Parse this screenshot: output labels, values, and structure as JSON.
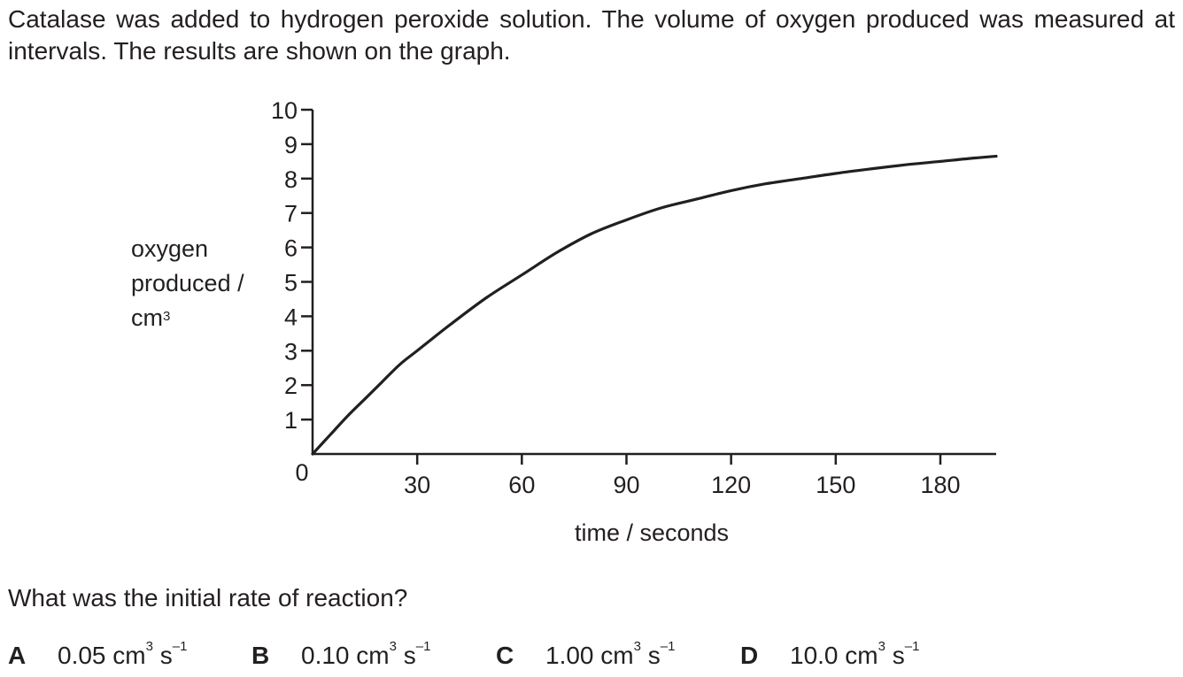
{
  "intro_text": "Catalase was added to hydrogen peroxide solution. The volume of oxygen produced was measured at intervals. The results are shown on the graph.",
  "question": "What was the initial rate of reaction?",
  "options": [
    {
      "key": "A",
      "value": "0.05",
      "unit": "cm",
      "exp": "3",
      "unit2": " s",
      "exp2": "–1"
    },
    {
      "key": "B",
      "value": "0.10",
      "unit": "cm",
      "exp": "3",
      "unit2": " s",
      "exp2": "–1"
    },
    {
      "key": "C",
      "value": "1.00",
      "unit": "cm",
      "exp": "3",
      "unit2": " s",
      "exp2": "–1"
    },
    {
      "key": "D",
      "value": "10.0",
      "unit": "cm",
      "exp": "3",
      "unit2": " s",
      "exp2": "–1"
    }
  ],
  "chart_data": {
    "type": "line",
    "xlabel": "time / seconds",
    "ylabel_lines": [
      "oxygen",
      "produced /",
      "cm"
    ],
    "ylabel_sup": "3",
    "xlim": [
      0,
      196
    ],
    "ylim": [
      0,
      10
    ],
    "xticks": [
      30,
      60,
      90,
      120,
      150,
      180
    ],
    "yticks": [
      1,
      2,
      3,
      4,
      5,
      6,
      7,
      8,
      9,
      10
    ],
    "origin_label": "0",
    "grid": false,
    "series": [
      {
        "x": [
          0,
          5,
          10,
          15,
          20,
          25,
          30,
          40,
          50,
          60,
          70,
          80,
          90,
          100,
          110,
          120,
          130,
          140,
          150,
          160,
          170,
          180,
          190,
          196
        ],
        "values": [
          0,
          0.55,
          1.1,
          1.6,
          2.1,
          2.6,
          3.0,
          3.8,
          4.55,
          5.2,
          5.85,
          6.4,
          6.8,
          7.15,
          7.4,
          7.65,
          7.85,
          8.0,
          8.15,
          8.28,
          8.4,
          8.5,
          8.6,
          8.65
        ]
      }
    ]
  }
}
